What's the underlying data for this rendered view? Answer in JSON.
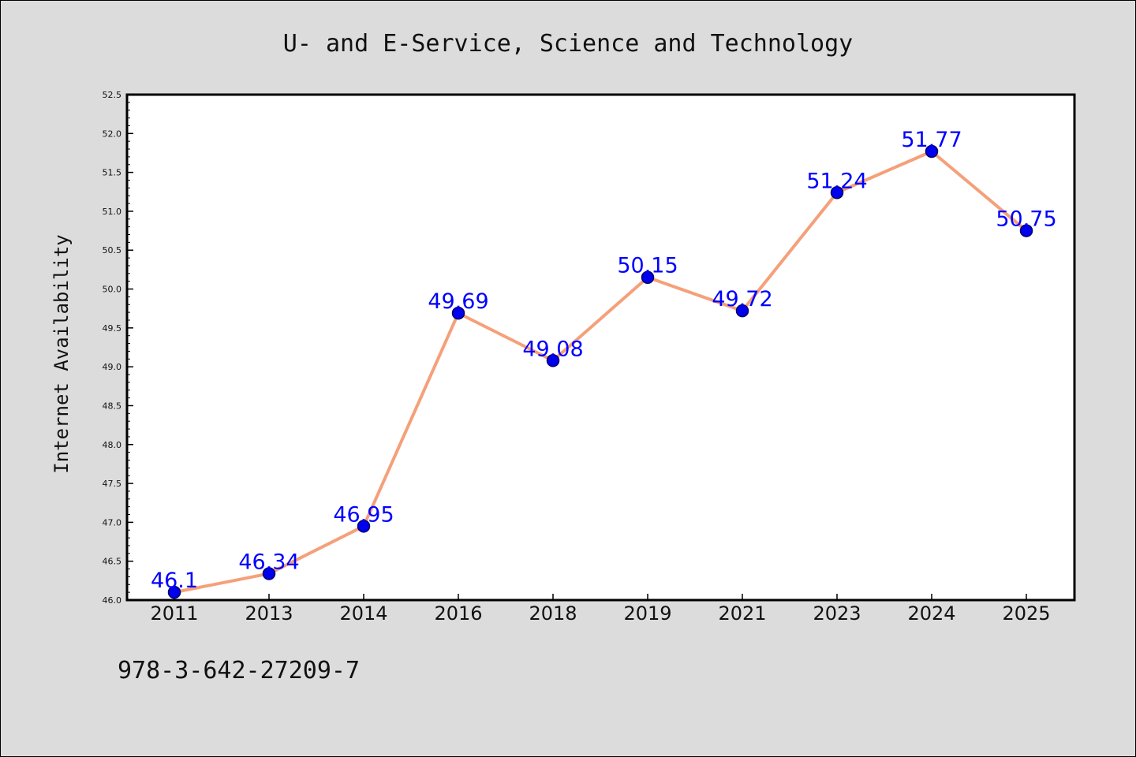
{
  "chart_data": {
    "type": "line",
    "title": "U- and E-Service, Science and Technology",
    "xlabel": "",
    "ylabel": "Internet Availability",
    "categories": [
      "2011",
      "2013",
      "2014",
      "2016",
      "2018",
      "2019",
      "2021",
      "2023",
      "2024",
      "2025"
    ],
    "series": [
      {
        "values": [
          46.1,
          46.34,
          46.95,
          49.69,
          49.08,
          50.15,
          49.72,
          51.24,
          51.77,
          50.75
        ]
      }
    ],
    "data_labels": [
      "46.1",
      "46.34",
      "46.95",
      "49.69",
      "49.08",
      "50.15",
      "49.72",
      "51.24",
      "51.77",
      "50.75"
    ],
    "ylim": [
      46.0,
      52.5
    ],
    "ytick_values": [
      46.0,
      46.5,
      47.0,
      47.5,
      48.0,
      48.5,
      49.0,
      49.5,
      50.0,
      50.5,
      51.0,
      51.5,
      52.0,
      52.5
    ],
    "ytick_labels": [
      "46.0",
      "46.5",
      "47.0",
      "47.5",
      "48.0",
      "48.5",
      "49.0",
      "49.5",
      "50.0",
      "50.5",
      "51.0",
      "51.5",
      "52.0",
      "52.5"
    ],
    "grid": false,
    "legend": "none",
    "colors": {
      "line": "#f5a07a",
      "marker": "#0000ee",
      "marker_edge": "#00006a",
      "data_label": "#0000ff",
      "background": "#dcdcdc",
      "plot_background": "#ffffff"
    }
  },
  "footer": {
    "code": "978-3-642-27209-7"
  }
}
